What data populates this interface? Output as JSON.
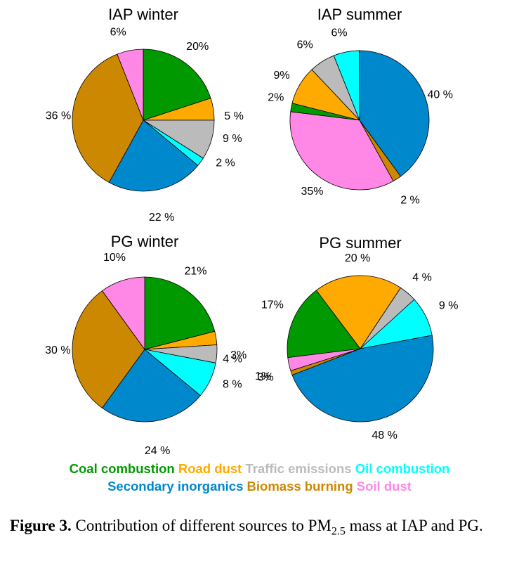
{
  "colors": {
    "Coal combustion": "#009900",
    "Road dust": "#ffaa00",
    "Traffic emissions": "#bbbbbb",
    "Oil combustion": "#00ffff",
    "Secondary inorganics": "#0088cc",
    "Biomass burning": "#cc8800",
    "Soil dust": "#ff88e6"
  },
  "chart_data": [
    {
      "type": "pie",
      "title": "IAP winter",
      "categories": [
        "Coal combustion",
        "Road dust",
        "Traffic emissions",
        "Oil combustion",
        "Secondary inorganics",
        "Biomass burning",
        "Soil dust"
      ],
      "values": [
        20,
        5,
        9,
        2,
        22,
        36,
        6
      ],
      "labels": [
        "20%",
        "5 %",
        "9 %",
        "2 %",
        "22 %",
        "36 %",
        "6%"
      ]
    },
    {
      "type": "pie",
      "title": "IAP summer",
      "categories": [
        "Coal combustion",
        "Road dust",
        "Traffic emissions",
        "Oil combustion",
        "Secondary inorganics",
        "Biomass burning",
        "Soil dust"
      ],
      "values": [
        2,
        9,
        6,
        6,
        40,
        2,
        35
      ],
      "labels": [
        "2%",
        "9%",
        "6%",
        "6%",
        "40 %",
        "2 %",
        "35%"
      ]
    },
    {
      "type": "pie",
      "title": "PG winter",
      "categories": [
        "Coal combustion",
        "Road dust",
        "Traffic emissions",
        "Oil combustion",
        "Secondary inorganics",
        "Biomass burning",
        "Soil dust"
      ],
      "values": [
        21,
        3,
        4,
        8,
        24,
        30,
        10
      ],
      "labels": [
        "21%",
        "3%",
        "4 %",
        "8 %",
        "24 %",
        "30 %",
        "10%"
      ]
    },
    {
      "type": "pie",
      "title": "PG summer",
      "categories": [
        "Coal combustion",
        "Road dust",
        "Traffic emissions",
        "Oil combustion",
        "Secondary inorganics",
        "Biomass burning",
        "Soil dust"
      ],
      "values": [
        17,
        20,
        4,
        9,
        48,
        1,
        3
      ],
      "labels": [
        "17%",
        "20 %",
        "4 %",
        "9 %",
        "48 %",
        "1%",
        "3%"
      ]
    }
  ],
  "legend": {
    "row1": [
      "Coal combustion",
      "Road dust",
      "Traffic emissions",
      "Oil combustion"
    ],
    "row2": [
      "Secondary inorganics",
      "Biomass burning",
      "Soil dust"
    ]
  },
  "caption": {
    "label": "Figure 3.",
    "text": "Contribution of different sources to PM",
    "subscript": "2.5",
    "text_after": "mass at IAP and PG."
  }
}
